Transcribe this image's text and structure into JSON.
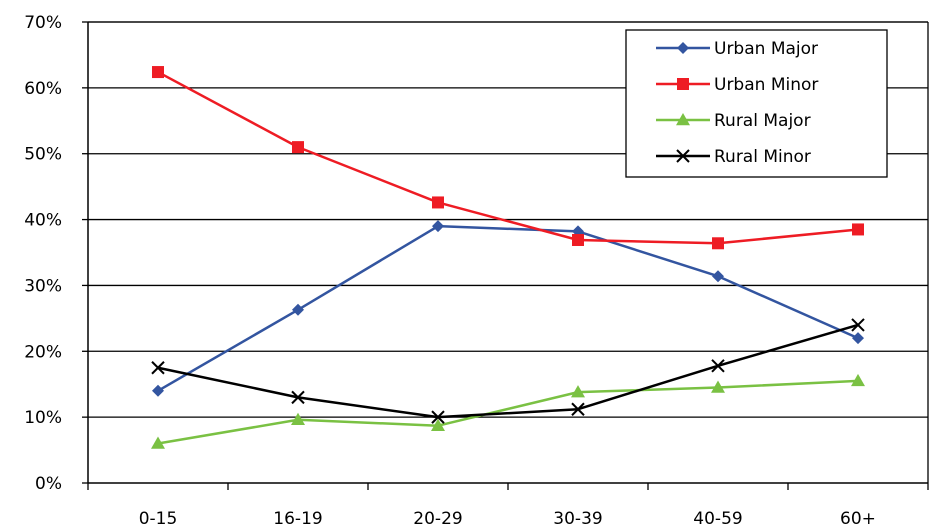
{
  "chart_data": {
    "type": "line",
    "title": "",
    "xlabel": "",
    "ylabel": "",
    "categories": [
      "0-15",
      "16-19",
      "20-29",
      "30-39",
      "40-59",
      "60+"
    ],
    "ylim": [
      0,
      70
    ],
    "yticks": [
      0,
      10,
      20,
      30,
      40,
      50,
      60,
      70
    ],
    "ytick_labels": [
      "0%",
      "10%",
      "20%",
      "30%",
      "40%",
      "50%",
      "60%",
      "70%"
    ],
    "grid": "horizontal",
    "legend_position": "top-right",
    "series": [
      {
        "name": "Urban Major",
        "color": "#3355a0",
        "marker": "diamond",
        "values": [
          14,
          26.3,
          39,
          38.2,
          31.4,
          22
        ]
      },
      {
        "name": "Urban Minor",
        "color": "#ee1c24",
        "marker": "square",
        "values": [
          62.4,
          51,
          42.6,
          36.9,
          36.4,
          38.5
        ]
      },
      {
        "name": "Rural Major",
        "color": "#7ac143",
        "marker": "triangle",
        "values": [
          6,
          9.6,
          8.7,
          13.8,
          14.5,
          15.5
        ]
      },
      {
        "name": "Rural Minor",
        "color": "#000000",
        "marker": "x",
        "values": [
          17.5,
          13,
          10,
          11.2,
          17.8,
          24
        ]
      }
    ]
  }
}
